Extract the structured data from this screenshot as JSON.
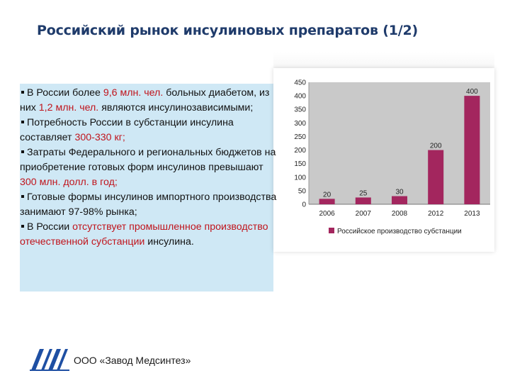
{
  "slide": {
    "title": "Российский рынок инсулиновых препаратов (1/2)"
  },
  "bullets": [
    {
      "parts": [
        {
          "t": "В России более "
        },
        {
          "t": "9,6 млн. чел.",
          "hl": true
        },
        {
          "t": " больных диабетом, из них "
        },
        {
          "t": "1,2 млн. чел.",
          "hl": true
        },
        {
          "t": " являются инсулинозависимыми;"
        }
      ]
    },
    {
      "parts": [
        {
          "t": "Потребность России в субстанции инсулина составляет "
        },
        {
          "t": "300-330 кг;",
          "hl": true
        }
      ]
    },
    {
      "parts": [
        {
          "t": "Затраты Федерального и региональных бюджетов на приобретение готовых форм инсулинов превышают "
        },
        {
          "t": "300 млн. долл. в год;",
          "hl": true
        }
      ]
    },
    {
      "parts": [
        {
          "t": "Готовые формы инсулинов импортного производства занимают 97-98% рынка;"
        }
      ]
    },
    {
      "parts": [
        {
          "t": "В России "
        },
        {
          "t": "отсутствует промышленное производство отечественной субстанции",
          "hl": true
        },
        {
          "t": " инсулина."
        }
      ]
    }
  ],
  "colors": {
    "title": "#1f3b6b",
    "highlight": "#c0141c",
    "panel": "#cfe8f5",
    "bar": "#a3265e",
    "plot_bg": "#c9c9c9"
  },
  "chart_data": {
    "type": "bar",
    "categories": [
      "2006",
      "2007",
      "2008",
      "2012",
      "2013"
    ],
    "series": [
      {
        "name": "Российское производство субстанции",
        "values": [
          20,
          25,
          30,
          200,
          400
        ]
      }
    ],
    "data_labels": [
      "20",
      "25",
      "30",
      "200",
      "400"
    ],
    "y_ticks": [
      "0",
      "50",
      "100",
      "150",
      "200",
      "250",
      "300",
      "350",
      "400",
      "450"
    ],
    "ylim": [
      0,
      450
    ],
    "grid": false,
    "legend": "bottom"
  },
  "footer": {
    "company": "ООО «Завод Медсинтез»",
    "logo_icon": "medsintez-logo"
  }
}
